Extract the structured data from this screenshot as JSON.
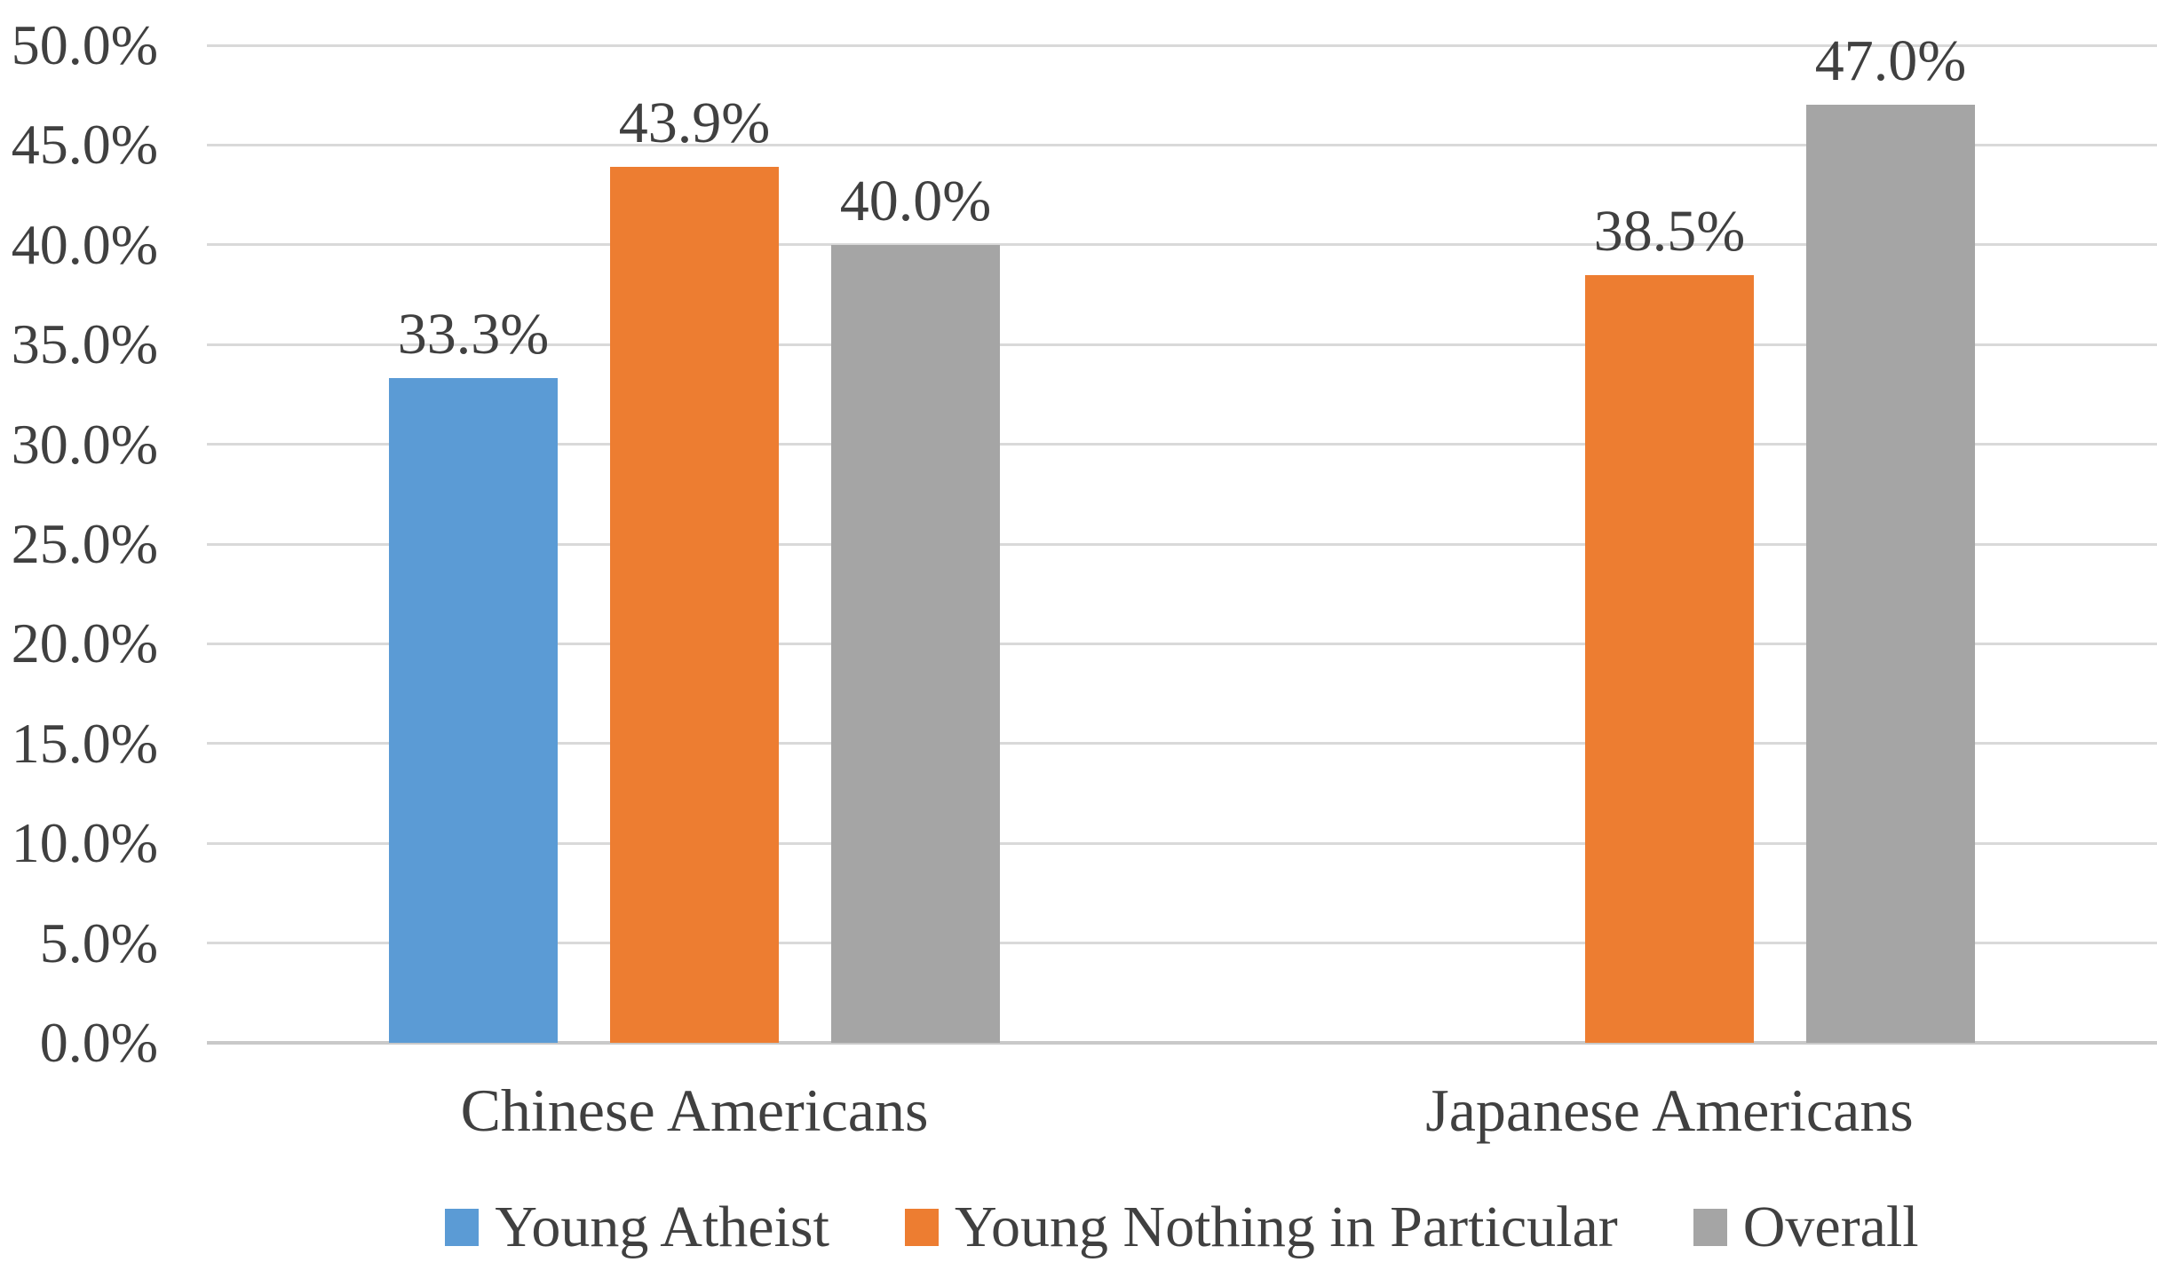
{
  "chart_data": {
    "type": "bar",
    "title": "",
    "categories": [
      "Chinese Americans",
      "Japanese Americans"
    ],
    "series": [
      {
        "name": "Young Atheist",
        "color": "#5B9BD5",
        "values": [
          33.3,
          null
        ],
        "labels": [
          "33.3%",
          null
        ]
      },
      {
        "name": "Young Nothing in Particular",
        "color": "#ED7D31",
        "values": [
          43.9,
          38.5
        ],
        "labels": [
          "43.9%",
          "38.5%"
        ]
      },
      {
        "name": "Overall",
        "color": "#A5A5A5",
        "values": [
          40.0,
          47.0
        ],
        "labels": [
          "40.0%",
          "47.0%"
        ]
      }
    ],
    "ylim": [
      0,
      50
    ],
    "ytick_step": 5,
    "ytick_labels": [
      "0.0%",
      "5.0%",
      "10.0%",
      "15.0%",
      "20.0%",
      "25.0%",
      "30.0%",
      "35.0%",
      "40.0%",
      "45.0%",
      "50.0%"
    ],
    "grid": true,
    "legend_position": "bottom",
    "legend_labels": [
      "Young Atheist",
      "Young Nothing in Particular",
      "Overall"
    ],
    "colors": {
      "gridline": "#D9D9D9",
      "axis_line": "#C9C9C9",
      "text": "#404040",
      "background": "#FFFFFF"
    }
  }
}
